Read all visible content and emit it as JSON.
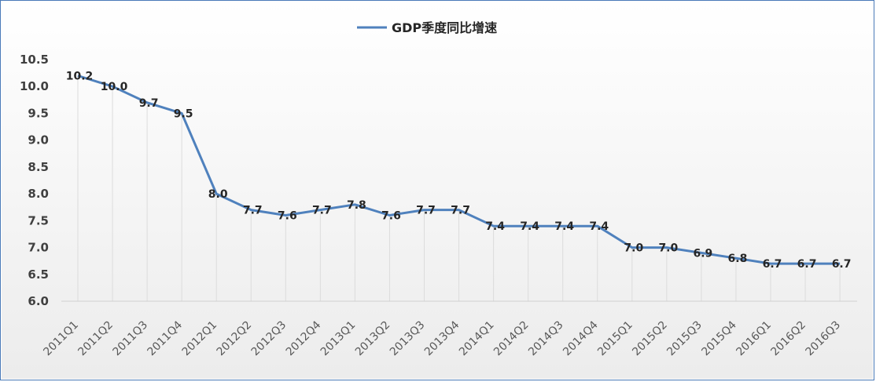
{
  "chart_data": {
    "type": "line",
    "title": "",
    "xlabel": "",
    "ylabel": "",
    "categories": [
      "2011Q1",
      "2011Q2",
      "2011Q3",
      "2011Q4",
      "2012Q1",
      "2012Q2",
      "2012Q3",
      "2012Q4",
      "2013Q1",
      "2013Q2",
      "2013Q3",
      "2013Q4",
      "2014Q1",
      "2014Q2",
      "2014Q3",
      "2014Q4",
      "2015Q1",
      "2015Q2",
      "2015Q3",
      "2015Q4",
      "2016Q1",
      "2016Q2",
      "2016Q3"
    ],
    "series": [
      {
        "name": "GDP季度同比增速",
        "values": [
          10.2,
          10.0,
          9.7,
          9.5,
          8.0,
          7.7,
          7.6,
          7.7,
          7.8,
          7.6,
          7.7,
          7.7,
          7.4,
          7.4,
          7.4,
          7.4,
          7.0,
          7.0,
          6.9,
          6.8,
          6.7,
          6.7,
          6.7
        ],
        "labels": [
          "10.2",
          "10.0",
          "9.7",
          "9.5",
          "8.0",
          "7.7",
          "7.6",
          "7.7",
          "7.8",
          "7.6",
          "7.7",
          "7.7",
          "7.4",
          "7.4",
          "7.4",
          "7.4",
          "7.0",
          "7.0",
          "6.9",
          "6.8",
          "6.7",
          "6.7",
          "6.7"
        ],
        "color": "#4f81bd"
      }
    ],
    "ylim": [
      6.0,
      10.5
    ],
    "yticks": [
      "6.0",
      "6.5",
      "7.0",
      "7.5",
      "8.0",
      "8.5",
      "9.0",
      "9.5",
      "10.0",
      "10.5"
    ],
    "legend": "top-center",
    "grid": "vertical",
    "background_gradient": [
      "#ffffff",
      "#ececec"
    ],
    "frame_color": "#4a7ab8"
  }
}
